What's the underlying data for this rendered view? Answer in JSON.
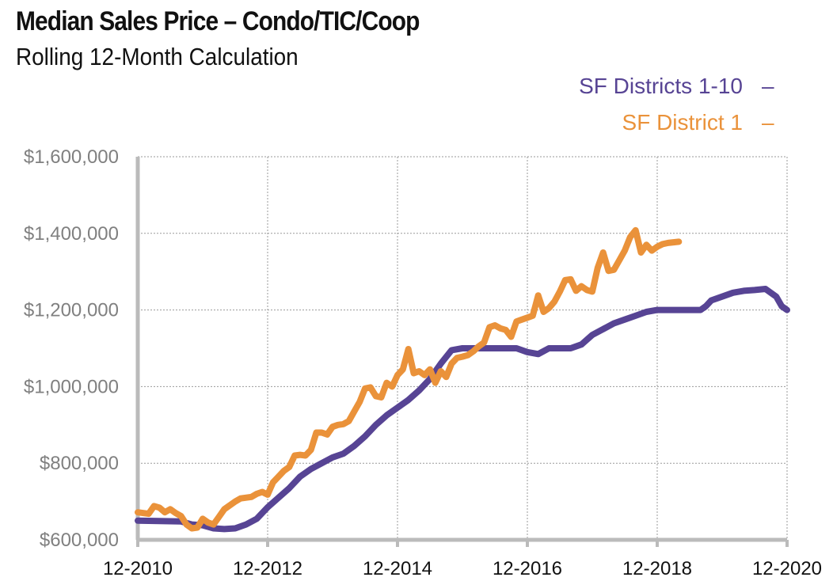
{
  "chart_data": {
    "type": "line",
    "title": "Median Sales Price – Condo/TIC/Coop",
    "subtitle": "Rolling 12-Month Calculation",
    "xlabel": "",
    "ylabel": "",
    "x_tick_labels": [
      "12-2010",
      "12-2012",
      "12-2014",
      "12-2016",
      "12-2018",
      "12-2020"
    ],
    "y_tick_labels": [
      "$1,600,000",
      "$1,400,000",
      "$1,200,000",
      "$1,000,000",
      "$800,000",
      "$600,000"
    ],
    "y_ticks": [
      1600000,
      1400000,
      1200000,
      1000000,
      800000,
      600000
    ],
    "ylim": [
      600000,
      1600000
    ],
    "xlim": [
      0,
      120
    ],
    "x_tick_positions": [
      0,
      24,
      48,
      72,
      96,
      120
    ],
    "grid": true,
    "legend_position": "top-right",
    "series": [
      {
        "name": "SF Districts 1-10",
        "color": "#574494",
        "points": [
          [
            0,
            650000
          ],
          [
            4,
            649000
          ],
          [
            8,
            648000
          ],
          [
            10,
            640000
          ],
          [
            12,
            638000
          ],
          [
            14,
            630000
          ],
          [
            16,
            628000
          ],
          [
            18,
            630000
          ],
          [
            20,
            640000
          ],
          [
            22,
            655000
          ],
          [
            24,
            685000
          ],
          [
            26,
            710000
          ],
          [
            28,
            735000
          ],
          [
            30,
            765000
          ],
          [
            32,
            785000
          ],
          [
            34,
            800000
          ],
          [
            36,
            815000
          ],
          [
            38,
            825000
          ],
          [
            40,
            845000
          ],
          [
            42,
            870000
          ],
          [
            44,
            900000
          ],
          [
            46,
            925000
          ],
          [
            48,
            945000
          ],
          [
            50,
            965000
          ],
          [
            52,
            990000
          ],
          [
            54,
            1020000
          ],
          [
            56,
            1060000
          ],
          [
            58,
            1095000
          ],
          [
            60,
            1100000
          ],
          [
            66,
            1100000
          ],
          [
            70,
            1100000
          ],
          [
            72,
            1090000
          ],
          [
            74,
            1085000
          ],
          [
            76,
            1100000
          ],
          [
            80,
            1100000
          ],
          [
            82,
            1110000
          ],
          [
            84,
            1135000
          ],
          [
            86,
            1150000
          ],
          [
            88,
            1165000
          ],
          [
            90,
            1175000
          ],
          [
            92,
            1185000
          ],
          [
            94,
            1195000
          ],
          [
            96,
            1200000
          ],
          [
            104,
            1200000
          ],
          [
            105,
            1210000
          ],
          [
            106,
            1225000
          ],
          [
            108,
            1235000
          ],
          [
            110,
            1245000
          ],
          [
            112,
            1250000
          ],
          [
            114,
            1252000
          ],
          [
            116,
            1255000
          ],
          [
            118,
            1235000
          ],
          [
            119,
            1210000
          ],
          [
            120,
            1200000
          ]
        ]
      },
      {
        "name": "SF District 1",
        "color": "#EA923A",
        "points": [
          [
            0,
            672000
          ],
          [
            2,
            668000
          ],
          [
            3,
            688000
          ],
          [
            4,
            684000
          ],
          [
            5,
            672000
          ],
          [
            6,
            680000
          ],
          [
            7,
            670000
          ],
          [
            8,
            662000
          ],
          [
            9,
            640000
          ],
          [
            10,
            630000
          ],
          [
            11,
            632000
          ],
          [
            12,
            655000
          ],
          [
            13,
            645000
          ],
          [
            14,
            640000
          ],
          [
            15,
            660000
          ],
          [
            16,
            680000
          ],
          [
            18,
            700000
          ],
          [
            19,
            708000
          ],
          [
            21,
            712000
          ],
          [
            22,
            720000
          ],
          [
            23,
            725000
          ],
          [
            24,
            718000
          ],
          [
            25,
            750000
          ],
          [
            26,
            765000
          ],
          [
            27,
            780000
          ],
          [
            28,
            790000
          ],
          [
            29,
            820000
          ],
          [
            30,
            822000
          ],
          [
            31,
            820000
          ],
          [
            32,
            835000
          ],
          [
            33,
            880000
          ],
          [
            34,
            880000
          ],
          [
            35,
            875000
          ],
          [
            36,
            895000
          ],
          [
            37,
            900000
          ],
          [
            38,
            902000
          ],
          [
            39,
            910000
          ],
          [
            40,
            935000
          ],
          [
            41,
            960000
          ],
          [
            42,
            995000
          ],
          [
            43,
            998000
          ],
          [
            44,
            975000
          ],
          [
            45,
            972000
          ],
          [
            46,
            1010000
          ],
          [
            47,
            1000000
          ],
          [
            48,
            1030000
          ],
          [
            49,
            1045000
          ],
          [
            50,
            1098000
          ],
          [
            51,
            1035000
          ],
          [
            52,
            1040000
          ],
          [
            53,
            1030000
          ],
          [
            54,
            1045000
          ],
          [
            55,
            1010000
          ],
          [
            56,
            1040000
          ],
          [
            57,
            1025000
          ],
          [
            58,
            1060000
          ],
          [
            59,
            1075000
          ],
          [
            60,
            1078000
          ],
          [
            61,
            1082000
          ],
          [
            62,
            1092000
          ],
          [
            63,
            1105000
          ],
          [
            64,
            1115000
          ],
          [
            65,
            1155000
          ],
          [
            66,
            1160000
          ],
          [
            67,
            1152000
          ],
          [
            68,
            1148000
          ],
          [
            69,
            1130000
          ],
          [
            70,
            1170000
          ],
          [
            71,
            1175000
          ],
          [
            72,
            1180000
          ],
          [
            73,
            1185000
          ],
          [
            74,
            1238000
          ],
          [
            75,
            1195000
          ],
          [
            76,
            1205000
          ],
          [
            77,
            1222000
          ],
          [
            78,
            1248000
          ],
          [
            79,
            1278000
          ],
          [
            80,
            1280000
          ],
          [
            81,
            1250000
          ],
          [
            82,
            1262000
          ],
          [
            83,
            1252000
          ],
          [
            84,
            1248000
          ],
          [
            85,
            1310000
          ],
          [
            86,
            1350000
          ],
          [
            87,
            1302000
          ],
          [
            88,
            1305000
          ],
          [
            89,
            1330000
          ],
          [
            90,
            1355000
          ],
          [
            91,
            1390000
          ],
          [
            92,
            1408000
          ],
          [
            93,
            1350000
          ],
          [
            94,
            1370000
          ],
          [
            95,
            1355000
          ],
          [
            96,
            1365000
          ],
          [
            97,
            1372000
          ],
          [
            98,
            1375000
          ],
          [
            100,
            1378000
          ]
        ]
      }
    ]
  },
  "legend": {
    "item1_label": "SF Districts 1-10",
    "item1_marker": "–",
    "item2_label": "SF District 1",
    "item2_marker": "–"
  },
  "colors": {
    "axis": "#bbbbbb",
    "grid": "#9a9a9a",
    "tick_text": "#808080",
    "series1": "#574494",
    "series2": "#EA923A"
  }
}
